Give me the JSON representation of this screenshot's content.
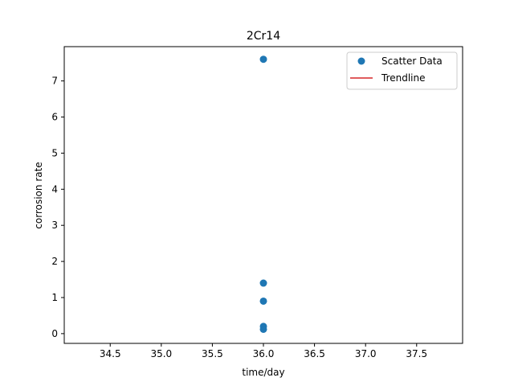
{
  "chart_data": {
    "type": "scatter",
    "title": "2Cr14",
    "xlabel": "time/day",
    "ylabel": "corrosion rate",
    "xlim": [
      34.05,
      37.95
    ],
    "ylim": [
      -0.27,
      7.95
    ],
    "xticks": [
      34.5,
      35.0,
      35.5,
      36.0,
      36.5,
      37.0,
      37.5
    ],
    "xtick_labels": [
      "34.5",
      "35.0",
      "35.5",
      "36.0",
      "36.5",
      "37.0",
      "37.5"
    ],
    "yticks": [
      0,
      1,
      2,
      3,
      4,
      5,
      6,
      7
    ],
    "ytick_labels": [
      "0",
      "1",
      "2",
      "3",
      "4",
      "5",
      "6",
      "7"
    ],
    "grid": false,
    "legend_position": "top-right",
    "series": [
      {
        "name": "Scatter Data",
        "kind": "scatter",
        "color": "#1f77b4",
        "points": [
          {
            "x": 36.0,
            "y": 7.6
          },
          {
            "x": 36.0,
            "y": 1.4
          },
          {
            "x": 36.0,
            "y": 0.9
          },
          {
            "x": 36.0,
            "y": 0.2
          },
          {
            "x": 36.0,
            "y": 0.12
          }
        ]
      },
      {
        "name": "Trendline",
        "kind": "line",
        "color": "#d62728",
        "points": []
      }
    ]
  }
}
